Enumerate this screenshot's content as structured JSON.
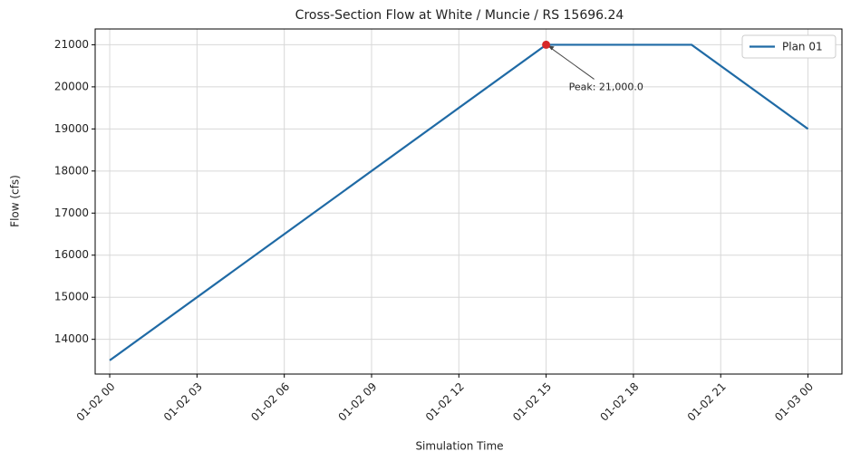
{
  "chart_data": {
    "type": "line",
    "title": "Cross-Section Flow at White / Muncie / RS 15696.24",
    "x_label": "Simulation Time",
    "y_label": "Flow (cfs)",
    "x": [
      "01-02 00",
      "01-02 15",
      "01-02 20",
      "01-03 00"
    ],
    "series": [
      {
        "name": "Plan 01",
        "color": "#1f6aa5",
        "values": [
          13500,
          21000,
          21000,
          19000
        ]
      }
    ],
    "xlim": [
      "01-01 23:30",
      "01-03 01:10"
    ],
    "xticks": [
      "01-02 00",
      "01-02 03",
      "01-02 06",
      "01-02 09",
      "01-02 12",
      "01-02 15",
      "01-02 18",
      "01-02 21",
      "01-03 00"
    ],
    "ylim": [
      13175,
      21375
    ],
    "yticks": [
      14000,
      15000,
      16000,
      17000,
      18000,
      19000,
      20000,
      21000
    ],
    "grid": true,
    "legend": "upper right",
    "annotations": [
      {
        "text": "Peak: 21,000.0",
        "x": "01-02 15",
        "y": 21000,
        "color": "#d62728"
      }
    ]
  }
}
